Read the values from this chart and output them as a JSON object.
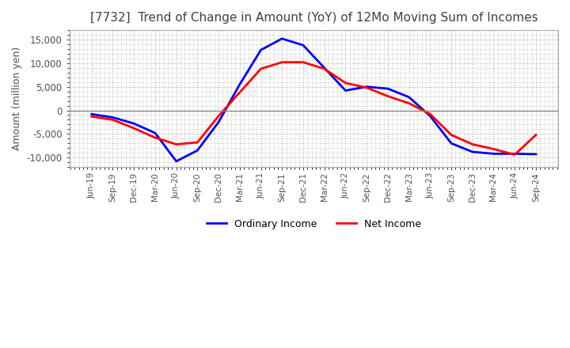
{
  "title": "[7732]  Trend of Change in Amount (YoY) of 12Mo Moving Sum of Incomes",
  "ylabel": "Amount (million yen)",
  "ylim": [
    -12000,
    17000
  ],
  "yticks": [
    -10000,
    -5000,
    0,
    5000,
    10000,
    15000
  ],
  "x_labels": [
    "Jun-19",
    "Sep-19",
    "Dec-19",
    "Mar-20",
    "Jun-20",
    "Sep-20",
    "Dec-20",
    "Mar-21",
    "Jun-21",
    "Sep-21",
    "Dec-21",
    "Mar-22",
    "Jun-22",
    "Sep-22",
    "Dec-22",
    "Mar-23",
    "Jun-23",
    "Sep-23",
    "Dec-23",
    "Mar-24",
    "Jun-24",
    "Sep-24"
  ],
  "ordinary_income": [
    -800,
    -1500,
    -2800,
    -4800,
    -10800,
    -8500,
    -2500,
    5500,
    12800,
    15200,
    13800,
    9000,
    4200,
    5000,
    4600,
    2800,
    -1200,
    -7000,
    -8800,
    -9200,
    -9200,
    -9300
  ],
  "net_income": [
    -1300,
    -2000,
    -3800,
    -5800,
    -7200,
    -6800,
    -1200,
    3800,
    8800,
    10200,
    10200,
    8800,
    5800,
    4800,
    3000,
    1500,
    -800,
    -5200,
    -7200,
    -8200,
    -9400,
    -5200
  ],
  "ordinary_color": "#0000FF",
  "net_color": "#FF0000",
  "background_color": "#FFFFFF",
  "grid_color": "#AAAAAA",
  "title_color": "#404040",
  "zero_line_color": "#888888",
  "legend_labels": [
    "Ordinary Income",
    "Net Income"
  ]
}
